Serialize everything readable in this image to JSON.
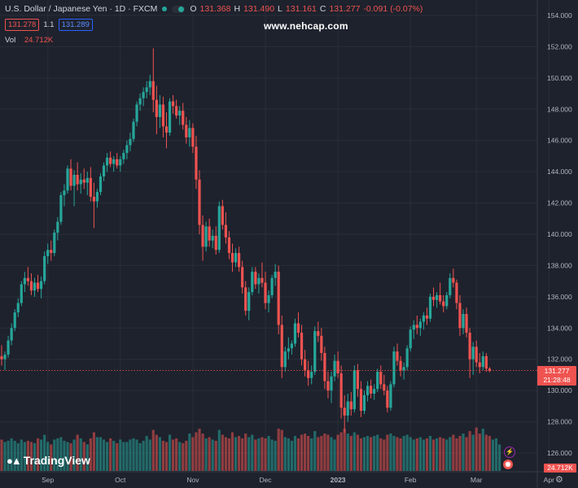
{
  "header": {
    "symbol_title": "U.S. Dollar / Japanese Yen · 1D · FXCM",
    "o_label": "O",
    "o_value": "131.368",
    "h_label": "H",
    "h_value": "131.490",
    "l_label": "L",
    "l_value": "131.161",
    "c_label": "C",
    "c_value": "131.277",
    "change": "-0.091 (-0.07%)",
    "bid": "131.278",
    "spread": "1.1",
    "ask": "131.289",
    "vol_label": "Vol",
    "vol_value": "24.712K"
  },
  "watermark": "www.nehcap.com",
  "logo_text": "TradingView",
  "price_tag": {
    "price": "131.277",
    "countdown": "21:28:48"
  },
  "volume_tag": "24.712K",
  "colors": {
    "up": "#26a69a",
    "down": "#ef5350",
    "background": "#1e222d",
    "grid": "#2a2e39"
  },
  "chart_data": {
    "type": "candlestick",
    "y_ticks": [
      "154.000",
      "152.000",
      "150.000",
      "148.000",
      "146.000",
      "144.000",
      "142.000",
      "140.000",
      "138.000",
      "136.000",
      "134.000",
      "132.000",
      "130.000",
      "128.000",
      "126.000"
    ],
    "y_range": [
      125.5,
      154.5
    ],
    "x_ticks": [
      {
        "label": "Sep",
        "index": 14
      },
      {
        "label": "Oct",
        "index": 36
      },
      {
        "label": "Nov",
        "index": 58
      },
      {
        "label": "Dec",
        "index": 80
      },
      {
        "label": "2023",
        "index": 102
      },
      {
        "label": "Feb",
        "index": 124
      },
      {
        "label": "Mar",
        "index": 144
      },
      {
        "label": "Apr",
        "index": 166
      }
    ],
    "last_price": 131.277,
    "candles": [
      [
        132.2,
        132.9,
        131.6,
        132.0
      ],
      [
        132.0,
        132.5,
        131.3,
        132.3
      ],
      [
        132.3,
        133.5,
        132.1,
        133.2
      ],
      [
        133.2,
        134.3,
        132.9,
        134.0
      ],
      [
        134.0,
        135.2,
        133.8,
        135.0
      ],
      [
        135.0,
        135.9,
        134.7,
        135.6
      ],
      [
        135.6,
        137.0,
        135.4,
        136.8
      ],
      [
        136.8,
        137.6,
        136.3,
        137.2
      ],
      [
        137.2,
        137.9,
        136.7,
        137.0
      ],
      [
        137.0,
        137.5,
        136.1,
        136.4
      ],
      [
        136.4,
        137.2,
        136.0,
        136.9
      ],
      [
        136.9,
        137.4,
        136.3,
        136.5
      ],
      [
        136.5,
        137.3,
        135.9,
        137.0
      ],
      [
        137.0,
        138.9,
        136.8,
        138.6
      ],
      [
        138.6,
        139.4,
        138.1,
        139.0
      ],
      [
        139.0,
        139.6,
        138.3,
        138.8
      ],
      [
        138.8,
        140.3,
        138.6,
        140.1
      ],
      [
        140.1,
        141.1,
        139.6,
        140.8
      ],
      [
        140.8,
        142.7,
        140.6,
        142.5
      ],
      [
        142.5,
        143.2,
        141.8,
        142.8
      ],
      [
        142.8,
        144.4,
        142.6,
        144.2
      ],
      [
        144.2,
        144.8,
        142.8,
        143.1
      ],
      [
        143.1,
        144.1,
        141.8,
        143.8
      ],
      [
        143.8,
        144.6,
        142.8,
        143.2
      ],
      [
        143.2,
        143.9,
        142.6,
        143.5
      ],
      [
        143.5,
        144.2,
        142.9,
        143.3
      ],
      [
        143.3,
        144.0,
        142.5,
        143.6
      ],
      [
        143.6,
        144.3,
        142.1,
        142.4
      ],
      [
        142.4,
        143.3,
        140.4,
        142.1
      ],
      [
        142.1,
        142.9,
        141.7,
        142.7
      ],
      [
        142.7,
        143.9,
        142.5,
        143.7
      ],
      [
        143.7,
        144.6,
        143.4,
        144.4
      ],
      [
        144.4,
        145.2,
        144.0,
        144.9
      ],
      [
        144.9,
        145.3,
        144.3,
        144.5
      ],
      [
        144.5,
        145.0,
        144.0,
        144.8
      ],
      [
        144.8,
        145.2,
        144.2,
        144.4
      ],
      [
        144.4,
        145.0,
        144.0,
        144.8
      ],
      [
        144.8,
        145.4,
        144.5,
        145.2
      ],
      [
        145.2,
        146.0,
        144.8,
        145.7
      ],
      [
        145.7,
        146.5,
        145.3,
        146.1
      ],
      [
        146.1,
        147.4,
        145.9,
        147.2
      ],
      [
        147.2,
        148.5,
        146.9,
        148.3
      ],
      [
        148.3,
        149.0,
        147.9,
        148.7
      ],
      [
        148.7,
        149.4,
        148.2,
        149.1
      ],
      [
        149.1,
        149.8,
        148.7,
        149.4
      ],
      [
        149.4,
        150.2,
        148.9,
        149.8
      ],
      [
        149.8,
        151.9,
        147.8,
        148.6
      ],
      [
        148.6,
        149.5,
        146.4,
        147.5
      ],
      [
        147.5,
        148.9,
        146.8,
        148.3
      ],
      [
        148.3,
        148.8,
        146.2,
        146.9
      ],
      [
        146.9,
        147.8,
        145.5,
        146.5
      ],
      [
        146.5,
        148.7,
        146.3,
        148.5
      ],
      [
        148.5,
        148.9,
        147.7,
        148.2
      ],
      [
        148.2,
        148.6,
        147.4,
        147.6
      ],
      [
        147.6,
        148.2,
        147.0,
        147.9
      ],
      [
        147.9,
        148.4,
        146.7,
        147.0
      ],
      [
        147.0,
        147.5,
        145.8,
        146.2
      ],
      [
        146.2,
        147.3,
        145.6,
        146.8
      ],
      [
        146.8,
        147.1,
        145.2,
        145.6
      ],
      [
        145.6,
        146.3,
        142.9,
        143.5
      ],
      [
        143.5,
        144.1,
        140.0,
        140.6
      ],
      [
        140.6,
        141.2,
        138.3,
        139.2
      ],
      [
        139.2,
        140.8,
        138.9,
        140.5
      ],
      [
        140.5,
        141.0,
        139.2,
        139.6
      ],
      [
        139.6,
        140.3,
        139.1,
        139.9
      ],
      [
        139.9,
        140.5,
        138.7,
        139.0
      ],
      [
        139.0,
        142.1,
        138.8,
        141.8
      ],
      [
        141.8,
        142.2,
        140.3,
        140.6
      ],
      [
        140.6,
        141.4,
        139.4,
        139.8
      ],
      [
        139.8,
        140.2,
        138.4,
        138.8
      ],
      [
        138.8,
        139.4,
        137.6,
        138.2
      ],
      [
        138.2,
        139.1,
        137.9,
        138.8
      ],
      [
        138.8,
        139.2,
        137.6,
        137.9
      ],
      [
        137.9,
        138.3,
        136.2,
        136.6
      ],
      [
        136.6,
        137.0,
        134.8,
        135.1
      ],
      [
        135.1,
        136.6,
        134.5,
        136.3
      ],
      [
        136.3,
        137.9,
        136.1,
        137.6
      ],
      [
        137.6,
        137.9,
        136.5,
        136.8
      ],
      [
        136.8,
        137.5,
        136.2,
        137.2
      ],
      [
        137.2,
        138.2,
        136.6,
        136.9
      ],
      [
        136.9,
        137.6,
        135.2,
        135.6
      ],
      [
        135.6,
        136.4,
        135.0,
        136.1
      ],
      [
        136.1,
        137.4,
        135.9,
        137.2
      ],
      [
        137.2,
        138.1,
        136.7,
        137.6
      ],
      [
        137.6,
        138.0,
        133.6,
        134.2
      ],
      [
        134.2,
        134.8,
        130.8,
        131.5
      ],
      [
        131.5,
        132.8,
        131.2,
        132.5
      ],
      [
        132.5,
        133.4,
        132.0,
        132.7
      ],
      [
        132.7,
        133.2,
        132.3,
        133.0
      ],
      [
        133.0,
        134.6,
        132.8,
        134.3
      ],
      [
        134.3,
        135.0,
        133.4,
        133.7
      ],
      [
        133.7,
        134.2,
        131.6,
        132.0
      ],
      [
        132.0,
        132.6,
        130.9,
        131.3
      ],
      [
        131.3,
        131.9,
        130.3,
        130.8
      ],
      [
        130.8,
        131.6,
        130.4,
        131.2
      ],
      [
        131.2,
        134.1,
        131.0,
        133.8
      ],
      [
        133.8,
        134.4,
        133.1,
        133.5
      ],
      [
        133.5,
        134.0,
        131.9,
        132.4
      ],
      [
        132.4,
        132.8,
        130.1,
        130.6
      ],
      [
        130.6,
        131.2,
        129.5,
        130.0
      ],
      [
        130.0,
        131.2,
        129.2,
        130.9
      ],
      [
        130.9,
        132.3,
        130.6,
        131.9
      ],
      [
        131.9,
        132.5,
        130.8,
        131.1
      ],
      [
        131.1,
        131.6,
        128.2,
        128.9
      ],
      [
        128.9,
        129.7,
        127.3,
        128.4
      ],
      [
        128.4,
        129.8,
        128.0,
        129.3
      ],
      [
        129.3,
        129.9,
        128.4,
        128.8
      ],
      [
        128.8,
        131.6,
        128.6,
        131.3
      ],
      [
        131.3,
        131.7,
        129.6,
        130.1
      ],
      [
        130.1,
        130.6,
        128.3,
        128.7
      ],
      [
        128.7,
        130.0,
        128.5,
        129.7
      ],
      [
        129.7,
        130.6,
        129.3,
        130.3
      ],
      [
        130.3,
        130.7,
        129.5,
        129.8
      ],
      [
        129.8,
        130.4,
        129.4,
        130.1
      ],
      [
        130.1,
        131.4,
        129.9,
        131.2
      ],
      [
        131.2,
        131.6,
        130.1,
        130.4
      ],
      [
        130.4,
        131.0,
        129.7,
        130.0
      ],
      [
        130.0,
        130.3,
        128.6,
        128.9
      ],
      [
        128.9,
        130.6,
        128.7,
        130.4
      ],
      [
        130.4,
        132.8,
        130.2,
        132.5
      ],
      [
        132.5,
        133.0,
        131.6,
        131.9
      ],
      [
        131.9,
        132.2,
        130.9,
        131.3
      ],
      [
        131.3,
        131.8,
        130.7,
        131.5
      ],
      [
        131.5,
        132.9,
        131.3,
        132.7
      ],
      [
        132.7,
        134.1,
        132.5,
        133.9
      ],
      [
        133.9,
        134.5,
        133.3,
        134.2
      ],
      [
        134.2,
        134.8,
        133.6,
        134.0
      ],
      [
        134.0,
        134.6,
        133.5,
        134.4
      ],
      [
        134.4,
        135.0,
        133.9,
        134.8
      ],
      [
        134.8,
        135.3,
        134.2,
        134.6
      ],
      [
        134.6,
        136.2,
        134.4,
        136.0
      ],
      [
        136.0,
        136.6,
        135.4,
        135.8
      ],
      [
        135.8,
        136.3,
        135.3,
        136.1
      ],
      [
        136.1,
        136.9,
        135.5,
        135.7
      ],
      [
        135.7,
        136.1,
        135.0,
        135.4
      ],
      [
        135.4,
        136.3,
        135.2,
        136.1
      ],
      [
        136.1,
        137.5,
        135.9,
        137.2
      ],
      [
        137.2,
        137.8,
        136.6,
        136.9
      ],
      [
        136.9,
        137.1,
        135.2,
        135.6
      ],
      [
        135.6,
        136.1,
        133.5,
        134.0
      ],
      [
        134.0,
        135.2,
        133.6,
        134.9
      ],
      [
        134.9,
        135.3,
        133.4,
        133.7
      ],
      [
        133.7,
        134.0,
        130.8,
        132.0
      ],
      [
        132.0,
        133.1,
        131.0,
        132.8
      ],
      [
        132.8,
        133.2,
        131.5,
        131.8
      ],
      [
        131.8,
        132.4,
        131.1,
        131.5
      ],
      [
        131.5,
        132.5,
        131.3,
        132.2
      ],
      [
        132.2,
        132.4,
        131.2,
        131.4
      ],
      [
        131.4,
        131.5,
        131.16,
        131.28
      ]
    ],
    "volumes": [
      26,
      24,
      25,
      27,
      25,
      23,
      26,
      24,
      25,
      24,
      23,
      27,
      26,
      30,
      24,
      22,
      26,
      27,
      28,
      25,
      24,
      23,
      26,
      30,
      27,
      24,
      22,
      27,
      32,
      28,
      28,
      26,
      24,
      27,
      25,
      23,
      26,
      24,
      24,
      26,
      27,
      26,
      23,
      25,
      29,
      26,
      34,
      30,
      28,
      25,
      24,
      30,
      26,
      27,
      24,
      23,
      25,
      31,
      28,
      32,
      35,
      31,
      27,
      28,
      26,
      25,
      34,
      30,
      28,
      27,
      32,
      28,
      29,
      27,
      31,
      28,
      30,
      26,
      27,
      28,
      27,
      29,
      26,
      25,
      35,
      34,
      28,
      27,
      25,
      29,
      27,
      30,
      31,
      29,
      27,
      33,
      28,
      29,
      31,
      30,
      28,
      26,
      30,
      32,
      35,
      31,
      29,
      32,
      30,
      27,
      28,
      29,
      28,
      29,
      30,
      27,
      26,
      30,
      31,
      29,
      28,
      27,
      29,
      30,
      28,
      26,
      27,
      28,
      26,
      27,
      29,
      26,
      27,
      28,
      27,
      26,
      28,
      30,
      27,
      29,
      31,
      28,
      33,
      30,
      36,
      31,
      35,
      30,
      29,
      26,
      27,
      22
    ],
    "volume_ylim": [
      0,
      60
    ]
  }
}
